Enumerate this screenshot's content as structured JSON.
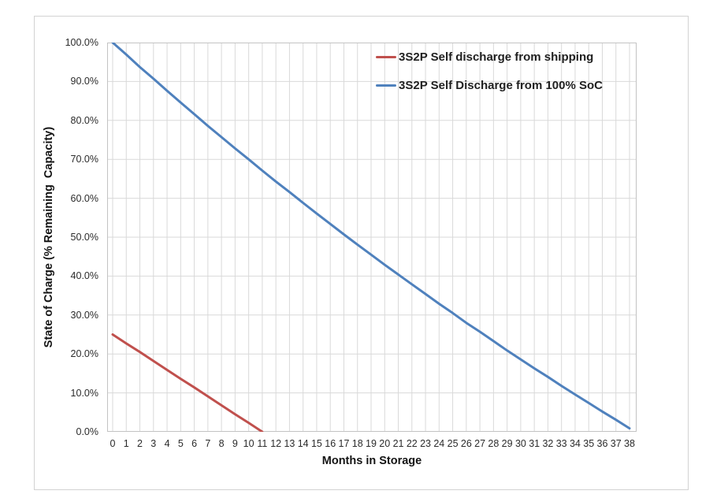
{
  "chart_data": {
    "type": "line",
    "title": "",
    "xlabel": "Months in Storage",
    "ylabel": "State of Charge (% Remaining  Capacity)",
    "xlim": [
      0,
      38
    ],
    "ylim": [
      0,
      100
    ],
    "grid": true,
    "legend_position": "top-right inside plot area",
    "x_ticks": [
      0,
      1,
      2,
      3,
      4,
      5,
      6,
      7,
      8,
      9,
      10,
      11,
      12,
      13,
      14,
      15,
      16,
      17,
      18,
      19,
      20,
      21,
      22,
      23,
      24,
      25,
      26,
      27,
      28,
      29,
      30,
      31,
      32,
      33,
      34,
      35,
      36,
      37,
      38
    ],
    "y_ticks": [
      0,
      10,
      20,
      30,
      40,
      50,
      60,
      70,
      80,
      90,
      100
    ],
    "y_tick_labels": [
      "0.0%",
      "10.0%",
      "20.0%",
      "30.0%",
      "40.0%",
      "50.0%",
      "60.0%",
      "70.0%",
      "80.0%",
      "90.0%",
      "100.0%"
    ],
    "series": [
      {
        "name": "3S2P Self discharge from shipping",
        "color": "#C0504D",
        "x": [
          0,
          1,
          2,
          3,
          4,
          5,
          6,
          7,
          8,
          9,
          10,
          11
        ],
        "values": [
          25.0,
          22.7,
          20.5,
          18.2,
          15.9,
          13.6,
          11.4,
          9.1,
          6.8,
          4.5,
          2.3,
          0.0
        ]
      },
      {
        "name": "3S2P Self Discharge from 100% SoC",
        "color": "#4F81BD",
        "x": [
          0,
          1,
          2,
          3,
          4,
          5,
          6,
          7,
          8,
          9,
          10,
          11,
          12,
          13,
          14,
          15,
          16,
          17,
          18,
          19,
          20,
          21,
          22,
          23,
          24,
          25,
          26,
          27,
          28,
          29,
          30,
          31,
          32,
          33,
          34,
          35,
          36,
          37,
          38
        ],
        "values": [
          100.0,
          96.9,
          93.7,
          90.7,
          87.6,
          84.6,
          81.6,
          78.6,
          75.7,
          72.8,
          70.0,
          67.1,
          64.3,
          61.6,
          58.8,
          56.1,
          53.4,
          50.7,
          48.1,
          45.5,
          42.9,
          40.4,
          37.9,
          35.4,
          32.9,
          30.5,
          28.0,
          25.7,
          23.3,
          20.9,
          18.6,
          16.3,
          14.1,
          11.8,
          9.6,
          7.4,
          5.2,
          3.1,
          0.9
        ]
      }
    ],
    "style": {
      "gridline_color": "#D9D9D9",
      "plot_border_color": "#C3C3C3",
      "line_width": 3
    }
  }
}
